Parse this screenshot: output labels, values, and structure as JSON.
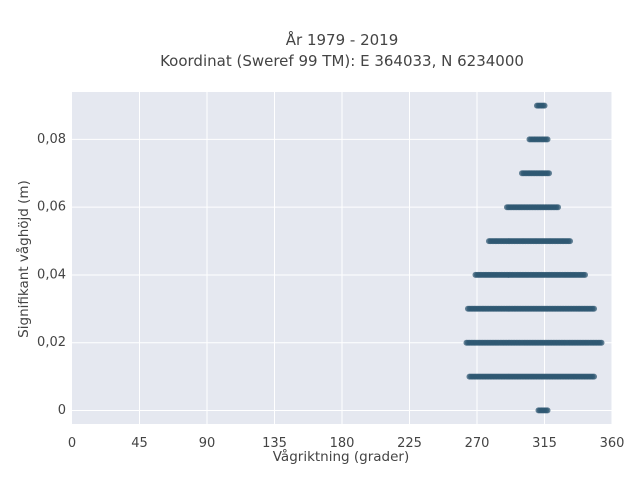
{
  "chart_data": {
    "type": "scatter",
    "title_line1": "År 1979 - 2019",
    "title_line2": "Koordinat (Sweref 99 TM): E 364033, N 6234000",
    "xlabel": "Vågriktning (grader)",
    "ylabel": "Signifikant våghöjd (m)",
    "xlim": [
      0,
      360
    ],
    "ylim": [
      -0.004,
      0.094
    ],
    "xticks": [
      0,
      45,
      90,
      135,
      180,
      225,
      270,
      315,
      360
    ],
    "xtick_labels": [
      "0",
      "45",
      "90",
      "135",
      "180",
      "225",
      "270",
      "315",
      "360"
    ],
    "yticks": [
      0,
      0.02,
      0.04,
      0.06,
      0.08
    ],
    "ytick_labels": [
      "0",
      "0,02",
      "0,04",
      "0,06",
      "0,08"
    ],
    "grid": true,
    "marker_color": "#2e5771",
    "plot_background": "#e5e8f0",
    "bands": [
      {
        "y": 0.0,
        "x_min": 311,
        "x_max": 317
      },
      {
        "y": 0.01,
        "x_min": 265,
        "x_max": 348
      },
      {
        "y": 0.02,
        "x_min": 263,
        "x_max": 353
      },
      {
        "y": 0.03,
        "x_min": 264,
        "x_max": 348
      },
      {
        "y": 0.04,
        "x_min": 269,
        "x_max": 342
      },
      {
        "y": 0.05,
        "x_min": 278,
        "x_max": 332
      },
      {
        "y": 0.06,
        "x_min": 290,
        "x_max": 324
      },
      {
        "y": 0.07,
        "x_min": 300,
        "x_max": 318
      },
      {
        "y": 0.08,
        "x_min": 305,
        "x_max": 317
      },
      {
        "y": 0.09,
        "x_min": 310,
        "x_max": 315
      }
    ]
  }
}
